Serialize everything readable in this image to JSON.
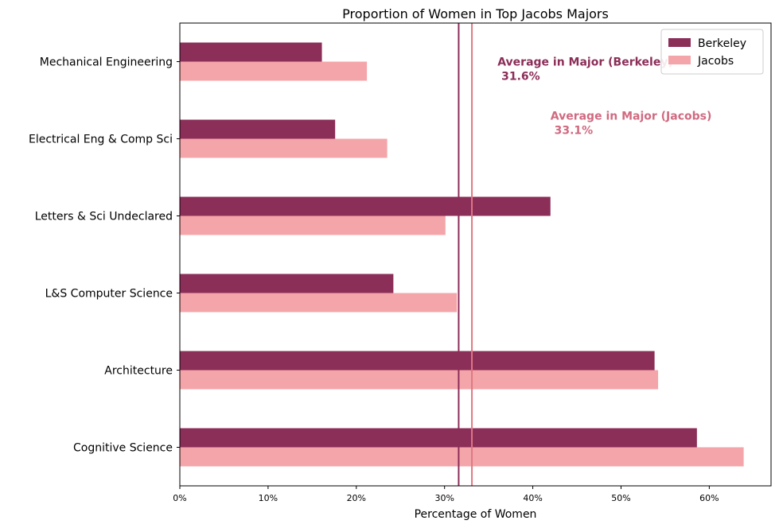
{
  "chart_data": {
    "type": "bar",
    "orientation": "horizontal",
    "title": "Proportion of Women in Top Jacobs Majors",
    "xlabel": "Percentage of Women",
    "ylabel": "",
    "categories": [
      "Mechanical Engineering",
      "Electrical Eng & Comp Sci",
      "Letters & Sci Undeclared",
      "L&S Computer Science",
      "Architecture",
      "Cognitive Science"
    ],
    "series": [
      {
        "name": "Berkeley",
        "color": "#8B2E58",
        "values": [
          16.1,
          17.6,
          42.0,
          24.2,
          53.8,
          58.6
        ]
      },
      {
        "name": "Jacobs",
        "color": "#F4A5A9",
        "values": [
          21.2,
          23.5,
          30.1,
          31.4,
          54.2,
          63.9
        ]
      }
    ],
    "xlim": [
      0,
      67
    ],
    "xticks": [
      0,
      10,
      20,
      30,
      40,
      50,
      60
    ],
    "xtick_labels": [
      "0%",
      "10%",
      "20%",
      "30%",
      "40%",
      "50%",
      "60%"
    ],
    "grid": false,
    "legend_position": "top-right",
    "reference_lines": [
      {
        "label": "Average in Major (Berkeley)",
        "value_label": "31.6%",
        "value": 31.6,
        "color": "#8B2E58",
        "label_x": 36.0,
        "label_y_category": 0.55
      },
      {
        "label": "Average in Major (Jacobs)",
        "value_label": "33.1%",
        "value": 33.1,
        "color": "#E07883",
        "text_color": "#D06A80",
        "label_x": 42.0,
        "label_y_category": 1.25
      }
    ]
  }
}
